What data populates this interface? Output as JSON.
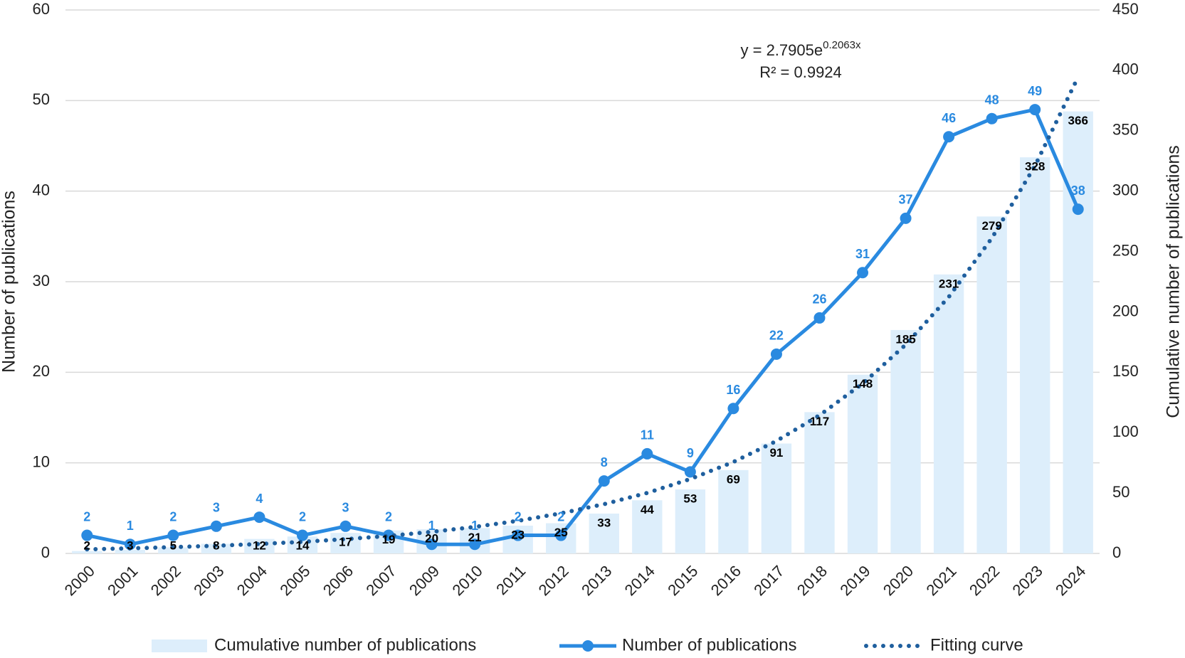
{
  "chart_data": {
    "type": "combo",
    "categories": [
      "2000",
      "2001",
      "2002",
      "2003",
      "2004",
      "2005",
      "2006",
      "2007",
      "2009",
      "2010",
      "2011",
      "2012",
      "2013",
      "2014",
      "2015",
      "2016",
      "2017",
      "2018",
      "2019",
      "2020",
      "2021",
      "2022",
      "2023",
      "2024"
    ],
    "series": [
      {
        "name": "Cumulative number of publications",
        "type": "bar",
        "axis": "y2",
        "color": "#ddeefb",
        "label_color": "#000000",
        "values": [
          2,
          3,
          5,
          8,
          12,
          14,
          17,
          19,
          20,
          21,
          23,
          25,
          33,
          44,
          53,
          69,
          91,
          117,
          148,
          185,
          231,
          279,
          328,
          366
        ]
      },
      {
        "name": "Number of publications",
        "type": "line",
        "marker": true,
        "axis": "y",
        "color": "#2a8ae0",
        "label_color": "#2a8ae0",
        "values": [
          2,
          1,
          2,
          3,
          4,
          2,
          3,
          2,
          1,
          1,
          2,
          2,
          8,
          11,
          9,
          16,
          22,
          26,
          31,
          37,
          46,
          48,
          49,
          38
        ]
      },
      {
        "name": "Fitting curve",
        "type": "line",
        "line_style": "dotted",
        "axis": "y2",
        "color": "#1f5f9e",
        "values": [
          3.4,
          4.2,
          5.2,
          6.4,
          7.8,
          9.6,
          11.8,
          14.5,
          17.9,
          22.0,
          27.0,
          33.2,
          40.8,
          50.1,
          61.6,
          75.7,
          93.1,
          114.4,
          140.6,
          172.8,
          212.4,
          261.1,
          320.9,
          394.4
        ]
      }
    ],
    "y_label": "Number of publications",
    "y2_label": "Cumulative number of publications",
    "annotation": {
      "equation": "y = 2.7905e",
      "exponent": "0.2063x",
      "r_squared": "R² = 0.9924"
    },
    "ylim": [
      0,
      60
    ],
    "yticks": [
      0,
      10,
      20,
      30,
      40,
      50,
      60
    ],
    "y2lim": [
      0,
      450
    ],
    "y2ticks": [
      0,
      50,
      100,
      150,
      200,
      250,
      300,
      350,
      400,
      450
    ],
    "grid": true,
    "legend": "bottom"
  }
}
